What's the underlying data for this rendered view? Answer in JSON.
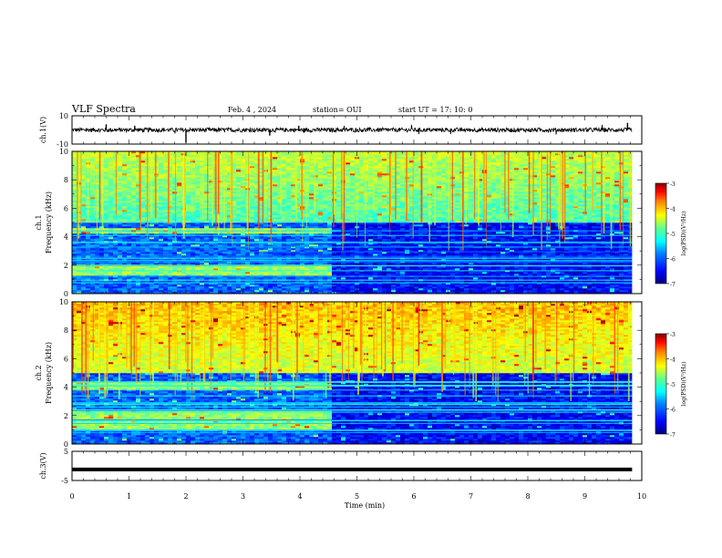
{
  "header": {
    "title": "VLF Spectra",
    "date": "Feb. 4 , 2024",
    "station": "station= OUI",
    "start": "start UT =  17: 10: 0"
  },
  "chart_data": [
    {
      "type": "line",
      "panel": "ch1-waveform",
      "ylabel": "ch.1(V)",
      "ylim": [
        -10,
        10
      ],
      "yticks": [
        "10",
        "-10"
      ],
      "x_range_min": [
        0,
        9.83
      ],
      "approx_level_v": 0,
      "approx_amplitude_v": 1.5
    },
    {
      "type": "heatmap",
      "panel": "ch1-spectrogram",
      "ylabel": "ch.1 Frequency (kHz)",
      "ylim": [
        0,
        10
      ],
      "yticks": [
        "0",
        "2",
        "4",
        "6",
        "8",
        "10"
      ],
      "colorbar": {
        "label": "log(PSD)(V²/Hz)",
        "range": [
          -7,
          -3
        ],
        "ticks": [
          "-3",
          "-4",
          "-5",
          "-6",
          "-7"
        ]
      },
      "segment_break_min": 4.5,
      "features": [
        {
          "band_khz": [
            4.2,
            4.6
          ],
          "time_min": [
            0,
            4.5
          ],
          "note": "persistent emission band"
        },
        {
          "band_khz": [
            1.3,
            2.0
          ],
          "time_min": [
            0,
            4.5
          ],
          "note": "enhanced band"
        }
      ]
    },
    {
      "type": "heatmap",
      "panel": "ch2-spectrogram",
      "ylabel": "ch.2 Frequency (kHz)",
      "ylim": [
        0,
        10
      ],
      "yticks": [
        "0",
        "2",
        "4",
        "6",
        "8",
        "10"
      ],
      "colorbar": {
        "label": "log(PSD)(V²/Hz)",
        "range": [
          -7,
          -3
        ],
        "ticks": [
          "-3",
          "-4",
          "-5",
          "-6",
          "-7"
        ]
      },
      "segment_break_min": 4.5,
      "features": [
        {
          "band_khz": [
            3.8,
            4.4
          ],
          "time_min": [
            0,
            4.5
          ],
          "note": "persistent emission band"
        },
        {
          "band_khz": [
            1.0,
            2.4
          ],
          "time_min": [
            0,
            4.5
          ],
          "note": "enhanced bands"
        }
      ]
    },
    {
      "type": "line",
      "panel": "ch3-waveform",
      "ylabel": "ch.3(V)",
      "ylim": [
        -5,
        5
      ],
      "yticks": [
        "5",
        "-5"
      ],
      "x_range_min": [
        0,
        9.83
      ],
      "approx_level_v": -1.2
    }
  ],
  "xaxis": {
    "label": "Time  (min)",
    "range": [
      0,
      10
    ],
    "ticks": [
      "0",
      "1",
      "2",
      "3",
      "4",
      "5",
      "6",
      "7",
      "8",
      "9",
      "10"
    ]
  },
  "colors": {
    "jet": [
      "#00007f",
      "#0000ff",
      "#007fff",
      "#00ffff",
      "#7fff7f",
      "#ffff00",
      "#ff7f00",
      "#ff0000",
      "#7f0000"
    ],
    "trace": "#000000"
  }
}
